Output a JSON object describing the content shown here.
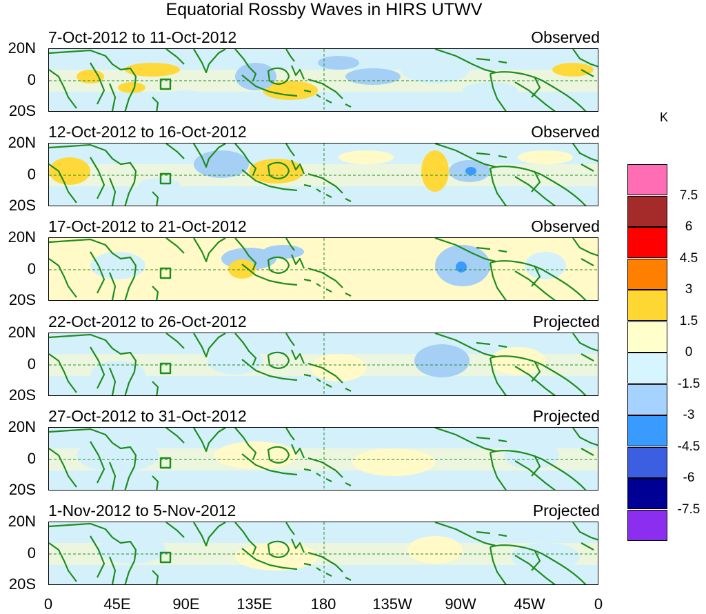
{
  "title": "Equatorial Rossby Waves in HIRS UTWV",
  "panels": [
    {
      "range": "7-Oct-2012 to 11-Oct-2012",
      "type": "Observed"
    },
    {
      "range": "12-Oct-2012 to 16-Oct-2012",
      "type": "Observed"
    },
    {
      "range": "17-Oct-2012 to 21-Oct-2012",
      "type": "Observed"
    },
    {
      "range": "22-Oct-2012 to 26-Oct-2012",
      "type": "Projected"
    },
    {
      "range": "27-Oct-2012 to 31-Oct-2012",
      "type": "Projected"
    },
    {
      "range": "1-Nov-2012 to 5-Nov-2012",
      "type": "Projected"
    }
  ],
  "lat_labels": [
    "20N",
    "0",
    "20S"
  ],
  "lon_labels": [
    "0",
    "45E",
    "90E",
    "135E",
    "180",
    "135W",
    "90W",
    "45W",
    "0"
  ],
  "colorbar": {
    "unit": "K",
    "labels": [
      "7.5",
      "6",
      "4.5",
      "3",
      "1.5",
      "0",
      "-1.5",
      "-3",
      "-4.5",
      "-6",
      "-7.5"
    ],
    "colors": [
      "#ff6eb4",
      "#a52a2a",
      "#ff0000",
      "#ff7f00",
      "#ffd733",
      "#ffffcc",
      "#d7f5ff",
      "#a5d2ff",
      "#3a9bff",
      "#3b5fe0",
      "#000095",
      "#8c2ef0"
    ]
  },
  "palette": {
    "land": "#1e8c1e",
    "pos": "#fffac8",
    "pos2": "#ffd93a",
    "neg": "#d4f1fb",
    "neg2": "#a5cff5",
    "neg3": "#3a9bff"
  }
}
